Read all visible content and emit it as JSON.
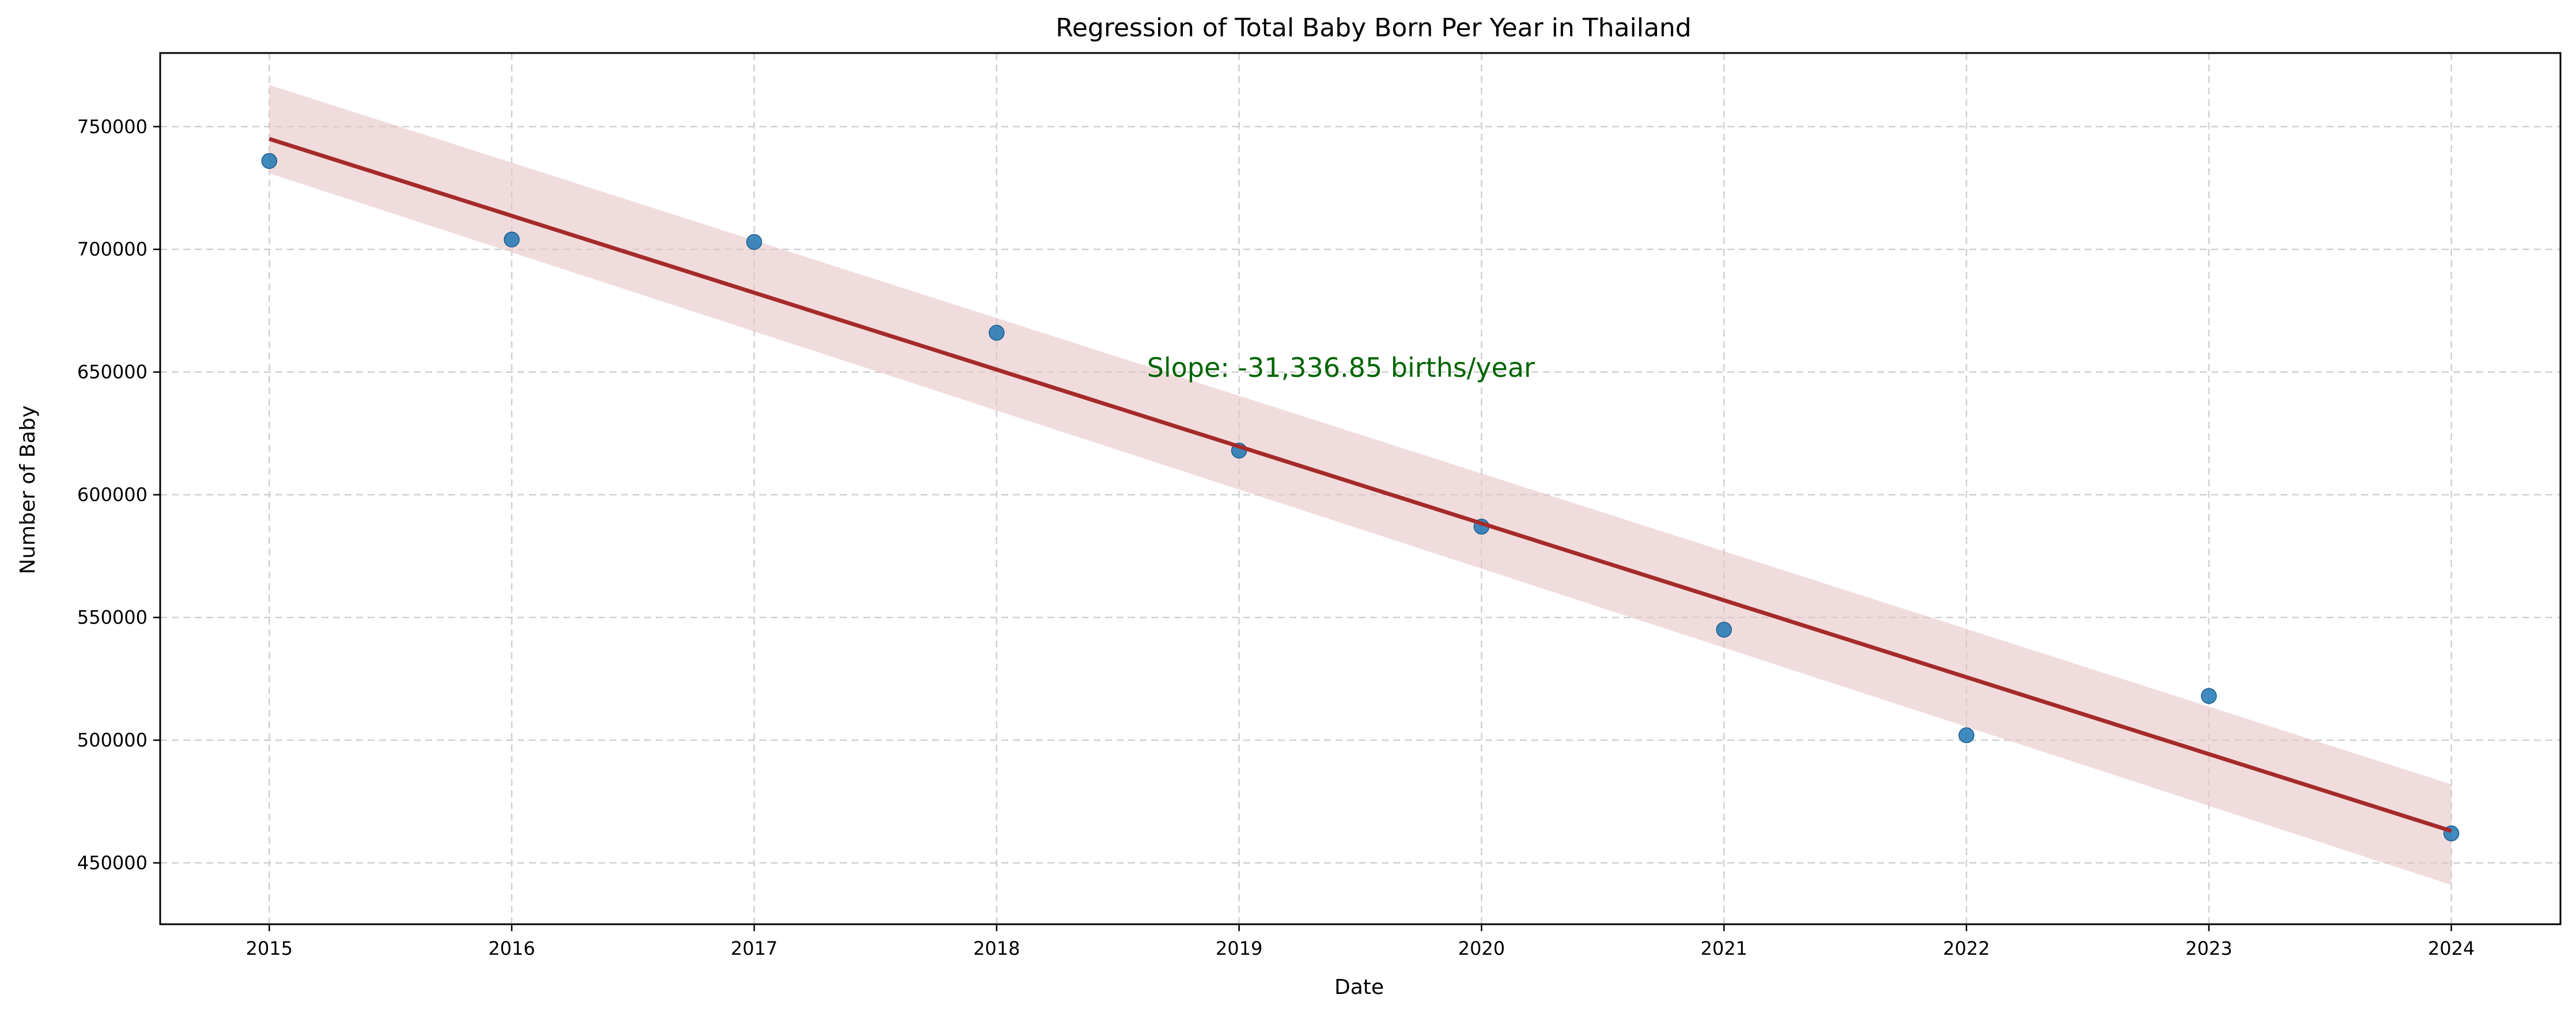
{
  "chart_data": {
    "type": "scatter",
    "title": "Regression of Total Baby Born Per Year in Thailand",
    "xlabel": "Date",
    "ylabel": "Number of Baby",
    "x_ticks": [
      "2015",
      "2016",
      "2017",
      "2018",
      "2019",
      "2020",
      "2021",
      "2022",
      "2023",
      "2024"
    ],
    "y_ticks": [
      450000,
      500000,
      550000,
      600000,
      650000,
      700000,
      750000
    ],
    "xlim": [
      2014.55,
      2024.45
    ],
    "ylim": [
      425000,
      780000
    ],
    "grid": true,
    "annotation": {
      "text": "Slope: -31,336.85 births/year",
      "x": 2018.62,
      "y": 648000
    },
    "points": [
      {
        "x": 2015,
        "y": 736000
      },
      {
        "x": 2016,
        "y": 704000
      },
      {
        "x": 2017,
        "y": 703000
      },
      {
        "x": 2018,
        "y": 666000
      },
      {
        "x": 2019,
        "y": 618000
      },
      {
        "x": 2020,
        "y": 587000
      },
      {
        "x": 2021,
        "y": 545000
      },
      {
        "x": 2022,
        "y": 502000
      },
      {
        "x": 2023,
        "y": 518000
      },
      {
        "x": 2024,
        "y": 462000
      }
    ],
    "regression": {
      "x": [
        2015,
        2024
      ],
      "y": [
        745000,
        463000
      ],
      "ci_upper": [
        767000,
        482000
      ],
      "ci_lower": [
        731000,
        441000
      ]
    },
    "colors": {
      "points": "#1f77b4",
      "line": "#a52a2a",
      "band": "#e7c4c6",
      "annotation": "#006400",
      "grid": "#d0d0d0"
    }
  }
}
